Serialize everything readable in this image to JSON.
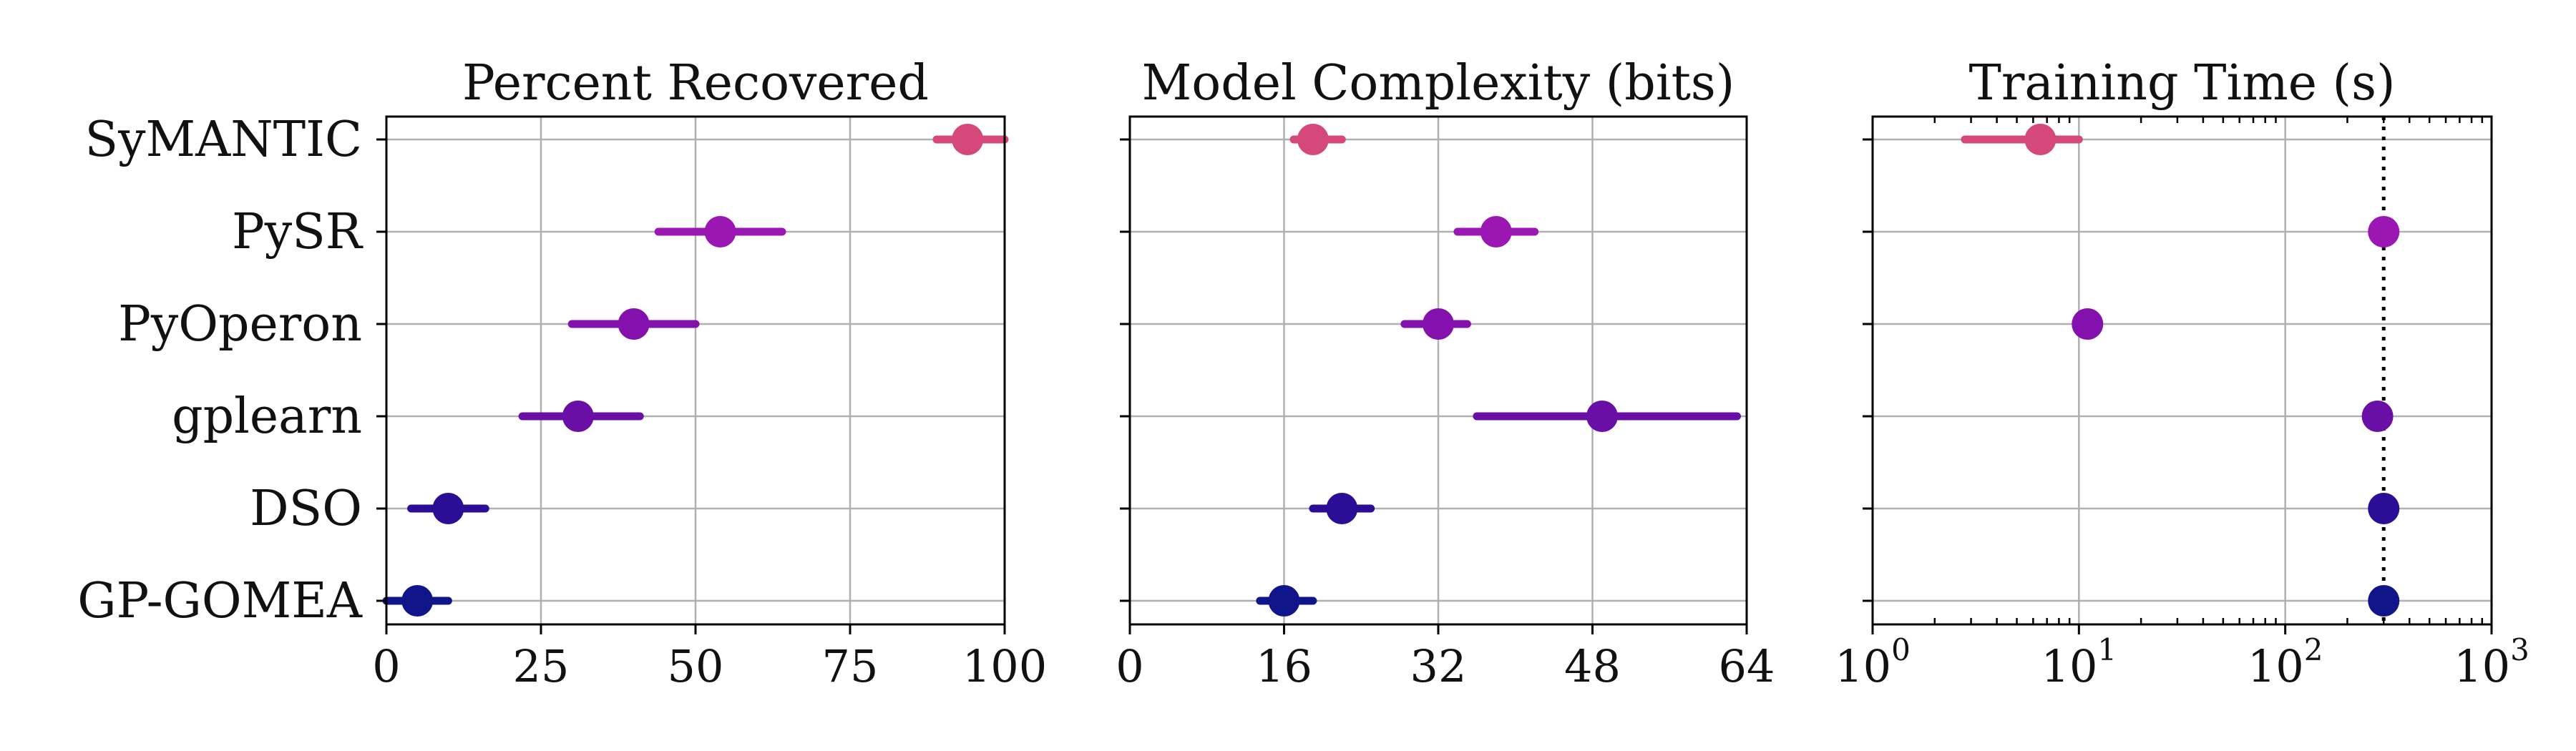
{
  "colors": {
    "SyMANTIC": "#d4487a",
    "PySR": "#9a17b3",
    "PyOperon": "#8410ad",
    "gplearn": "#6a0fa6",
    "DSO": "#2c0d96",
    "GP-GOMEA": "#10168a",
    "grid": "#b0b0b0",
    "axis": "#000000",
    "reference_line": "#000000"
  },
  "chart_data": [
    {
      "type": "scatter",
      "subtype": "point-with-error-bars",
      "title": "Percent Recovered",
      "xlabel": "",
      "ylabel": "",
      "xlim": [
        0,
        100
      ],
      "xscale": "linear",
      "xticks": [
        0,
        25,
        50,
        75,
        100
      ],
      "xtick_labels": [
        "0",
        "25",
        "50",
        "75",
        "100"
      ],
      "grid": true,
      "categories": [
        "SyMANTIC",
        "PySR",
        "PyOperon",
        "gplearn",
        "DSO",
        "GP-GOMEA"
      ],
      "values": [
        94,
        54,
        40,
        31,
        10,
        5
      ],
      "lower": [
        89,
        44,
        30,
        22,
        4,
        0
      ],
      "upper": [
        100,
        64,
        50,
        41,
        16,
        10
      ]
    },
    {
      "type": "scatter",
      "subtype": "point-with-error-bars",
      "title": "Model Complexity (bits)",
      "xlabel": "",
      "ylabel": "",
      "xlim": [
        0,
        64
      ],
      "xscale": "linear",
      "xticks": [
        0,
        16,
        32,
        48,
        64
      ],
      "xtick_labels": [
        "0",
        "16",
        "32",
        "48",
        "64"
      ],
      "grid": true,
      "categories": [
        "SyMANTIC",
        "PySR",
        "PyOperon",
        "gplearn",
        "DSO",
        "GP-GOMEA"
      ],
      "values": [
        19,
        38,
        32,
        49,
        22,
        16
      ],
      "lower": [
        17,
        34,
        28.5,
        36,
        19,
        13.5
      ],
      "upper": [
        22,
        42,
        35,
        63,
        25,
        19
      ]
    },
    {
      "type": "scatter",
      "subtype": "point-with-error-bars",
      "title": "Training Time (s)",
      "xlabel": "",
      "ylabel": "",
      "xlim": [
        1,
        1000
      ],
      "xscale": "log",
      "xticks": [
        1,
        10,
        100,
        1000
      ],
      "xtick_labels": [
        {
          "base": "10",
          "exp": "0"
        },
        {
          "base": "10",
          "exp": "1"
        },
        {
          "base": "10",
          "exp": "2"
        },
        {
          "base": "10",
          "exp": "3"
        }
      ],
      "grid": true,
      "reference_line": {
        "x": 300,
        "style": "dotted"
      },
      "categories": [
        "SyMANTIC",
        "PySR",
        "PyOperon",
        "gplearn",
        "DSO",
        "GP-GOMEA"
      ],
      "values": [
        6.5,
        300,
        11,
        280,
        300,
        300
      ],
      "lower": [
        2.8,
        300,
        10,
        270,
        300,
        300
      ],
      "upper": [
        10,
        300,
        12,
        290,
        300,
        300
      ]
    }
  ]
}
